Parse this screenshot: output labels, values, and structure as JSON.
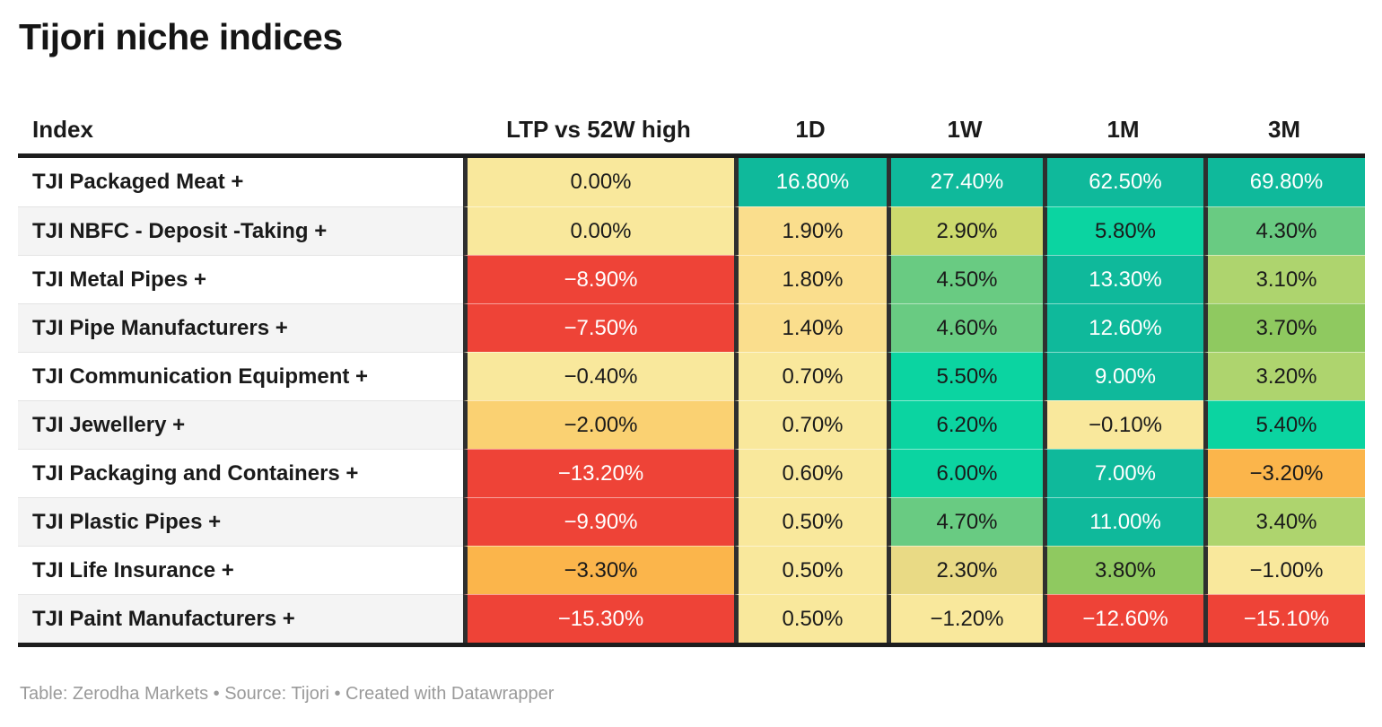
{
  "title": "Tijori niche indices",
  "footer": "Table: Zerodha Markets • Source: Tijori • Created with Datawrapper",
  "chart_data": {
    "type": "table",
    "title": "Tijori niche indices",
    "columns": [
      "Index",
      "LTP vs 52W high",
      "1D",
      "1W",
      "1M",
      "3M"
    ],
    "palette": {
      "teal": {
        "bg": "#0fb99b",
        "text": "#ffffff"
      },
      "brightGreen": {
        "bg": "#0bd4a1",
        "text": "#1a1a1a"
      },
      "green": {
        "bg": "#69cb82",
        "text": "#1a1a1a"
      },
      "lightGreen": {
        "bg": "#8fc960",
        "text": "#1a1a1a"
      },
      "yellowGreen": {
        "bg": "#aed46e",
        "text": "#1a1a1a"
      },
      "olive": {
        "bg": "#ccd96d",
        "text": "#1a1a1a"
      },
      "tan": {
        "bg": "#e9da85",
        "text": "#1a1a1a"
      },
      "gold": {
        "bg": "#fade8d",
        "text": "#1a1a1a"
      },
      "paleYellow": {
        "bg": "#f9e89c",
        "text": "#1a1a1a"
      },
      "amber": {
        "bg": "#fad172",
        "text": "#1a1a1a"
      },
      "orange": {
        "bg": "#fbb54b",
        "text": "#1a1a1a"
      },
      "red": {
        "bg": "#ee4337",
        "text": "#ffffff"
      }
    },
    "rows": [
      {
        "index": "TJI Packaged Meat +",
        "values": [
          0.0,
          16.8,
          27.4,
          62.5,
          69.8
        ],
        "display": [
          "0.00%",
          "16.80%",
          "27.40%",
          "62.50%",
          "69.80%"
        ],
        "colors": [
          "paleYellow",
          "teal",
          "teal",
          "teal",
          "teal"
        ]
      },
      {
        "index": "TJI NBFC - Deposit -Taking +",
        "values": [
          0.0,
          1.9,
          2.9,
          5.8,
          4.3
        ],
        "display": [
          "0.00%",
          "1.90%",
          "2.90%",
          "5.80%",
          "4.30%"
        ],
        "colors": [
          "paleYellow",
          "gold",
          "olive",
          "brightGreen",
          "green"
        ]
      },
      {
        "index": "TJI Metal Pipes +",
        "values": [
          -8.9,
          1.8,
          4.5,
          13.3,
          3.1
        ],
        "display": [
          "−8.90%",
          "1.80%",
          "4.50%",
          "13.30%",
          "3.10%"
        ],
        "colors": [
          "red",
          "gold",
          "green",
          "teal",
          "yellowGreen"
        ]
      },
      {
        "index": "TJI Pipe Manufacturers +",
        "values": [
          -7.5,
          1.4,
          4.6,
          12.6,
          3.7
        ],
        "display": [
          "−7.50%",
          "1.40%",
          "4.60%",
          "12.60%",
          "3.70%"
        ],
        "colors": [
          "red",
          "gold",
          "green",
          "teal",
          "lightGreen"
        ]
      },
      {
        "index": "TJI Communication Equipment +",
        "values": [
          -0.4,
          0.7,
          5.5,
          9.0,
          3.2
        ],
        "display": [
          "−0.40%",
          "0.70%",
          "5.50%",
          "9.00%",
          "3.20%"
        ],
        "colors": [
          "paleYellow",
          "paleYellow",
          "brightGreen",
          "teal",
          "yellowGreen"
        ]
      },
      {
        "index": "TJI Jewellery +",
        "values": [
          -2.0,
          0.7,
          6.2,
          -0.1,
          5.4
        ],
        "display": [
          "−2.00%",
          "0.70%",
          "6.20%",
          "−0.10%",
          "5.40%"
        ],
        "colors": [
          "amber",
          "paleYellow",
          "brightGreen",
          "paleYellow",
          "brightGreen"
        ]
      },
      {
        "index": "TJI Packaging and Containers +",
        "values": [
          -13.2,
          0.6,
          6.0,
          7.0,
          -3.2
        ],
        "display": [
          "−13.20%",
          "0.60%",
          "6.00%",
          "7.00%",
          "−3.20%"
        ],
        "colors": [
          "red",
          "paleYellow",
          "brightGreen",
          "teal",
          "orange"
        ]
      },
      {
        "index": "TJI Plastic Pipes +",
        "values": [
          -9.9,
          0.5,
          4.7,
          11.0,
          3.4
        ],
        "display": [
          "−9.90%",
          "0.50%",
          "4.70%",
          "11.00%",
          "3.40%"
        ],
        "colors": [
          "red",
          "paleYellow",
          "green",
          "teal",
          "yellowGreen"
        ]
      },
      {
        "index": "TJI Life Insurance +",
        "values": [
          -3.3,
          0.5,
          2.3,
          3.8,
          -1.0
        ],
        "display": [
          "−3.30%",
          "0.50%",
          "2.30%",
          "3.80%",
          "−1.00%"
        ],
        "colors": [
          "orange",
          "paleYellow",
          "tan",
          "lightGreen",
          "paleYellow"
        ]
      },
      {
        "index": "TJI Paint Manufacturers +",
        "values": [
          -15.3,
          0.5,
          -1.2,
          -12.6,
          -15.1
        ],
        "display": [
          "−15.30%",
          "0.50%",
          "−1.20%",
          "−12.60%",
          "−15.10%"
        ],
        "colors": [
          "red",
          "paleYellow",
          "paleYellow",
          "red",
          "red"
        ]
      }
    ],
    "footer": "Table: Zerodha Markets • Source: Tijori • Created with Datawrapper"
  }
}
